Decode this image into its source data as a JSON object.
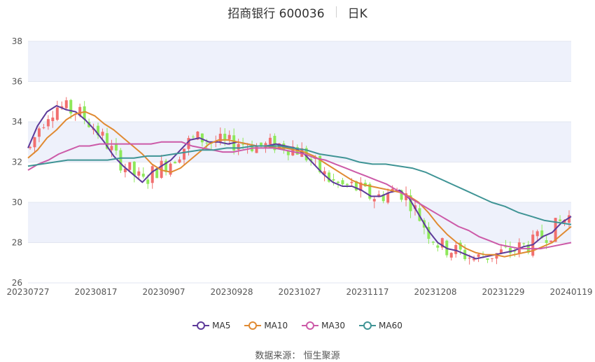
{
  "header": {
    "title": "招商银行 600036",
    "period": "日K"
  },
  "source": {
    "label": "数据来源：",
    "name": "恒生聚源"
  },
  "colors": {
    "up": "#f16f6f",
    "down": "#8ee85a",
    "band": "#eef1fb",
    "grid": "#e2e6f0",
    "MA5": "#5d3a9a",
    "MA10": "#e08a32",
    "MA30": "#cc5aa8",
    "MA60": "#3f9495"
  },
  "chart_data": {
    "type": "candlestick",
    "x_ticks": [
      "20230727",
      "20230817",
      "20230907",
      "20230928",
      "20231027",
      "20231117",
      "20231208",
      "20231229",
      "20240119"
    ],
    "ylim": [
      26,
      38
    ],
    "y_ticks": [
      26,
      28,
      30,
      32,
      34,
      36,
      38
    ],
    "grid": "horizontal bands",
    "legend_position": "bottom",
    "series": [
      {
        "name": "MA5",
        "values": [
          32.7,
          33.8,
          34.5,
          34.8,
          34.6,
          34.5,
          34.1,
          33.6,
          33.0,
          32.3,
          31.8,
          31.4,
          31.0,
          31.5,
          31.8,
          32.1,
          32.6,
          33.1,
          33.2,
          33.0,
          33.0,
          32.9,
          33.0,
          32.9,
          32.8,
          32.8,
          32.9,
          32.8,
          32.7,
          32.4,
          31.9,
          31.4,
          31.0,
          30.8,
          30.8,
          30.6,
          30.3,
          30.3,
          30.5,
          30.6,
          30.2,
          29.4,
          28.6,
          28.0,
          27.7,
          27.6,
          27.4,
          27.2,
          27.3,
          27.4,
          27.5,
          27.6,
          27.8,
          27.9,
          28.3,
          28.5,
          29.0,
          29.3
        ]
      },
      {
        "name": "MA10",
        "values": [
          32.2,
          32.6,
          33.2,
          33.6,
          34.1,
          34.4,
          34.5,
          34.3,
          33.9,
          33.6,
          33.2,
          32.8,
          32.4,
          31.9,
          31.6,
          31.5,
          31.7,
          32.1,
          32.5,
          32.9,
          33.1,
          33.1,
          33.0,
          32.9,
          32.8,
          32.8,
          32.7,
          32.7,
          32.6,
          32.5,
          32.3,
          32.0,
          31.7,
          31.4,
          31.1,
          30.9,
          30.8,
          30.7,
          30.6,
          30.5,
          30.3,
          30.0,
          29.5,
          28.9,
          28.4,
          28.0,
          27.7,
          27.5,
          27.4,
          27.4,
          27.3,
          27.4,
          27.5,
          27.6,
          27.8,
          28.0,
          28.4,
          28.8
        ]
      },
      {
        "name": "MA30",
        "values": [
          31.6,
          31.9,
          32.1,
          32.4,
          32.6,
          32.8,
          32.8,
          32.9,
          32.9,
          32.9,
          32.9,
          32.9,
          32.9,
          33.0,
          33.0,
          33.0,
          32.8,
          32.7,
          32.6,
          32.5,
          32.5,
          32.6,
          32.7,
          32.7,
          32.7,
          32.6,
          32.5,
          32.4,
          32.2,
          32.1,
          31.9,
          31.7,
          31.5,
          31.3,
          31.1,
          30.9,
          30.6,
          30.3,
          30.0,
          29.7,
          29.4,
          29.1,
          28.8,
          28.6,
          28.3,
          28.1,
          27.9,
          27.8,
          27.7,
          27.7,
          27.7,
          27.8,
          27.9,
          28.0
        ],
        "x_start_index": 0
      },
      {
        "name": "MA60",
        "values": [
          31.8,
          31.9,
          32.0,
          32.1,
          32.1,
          32.1,
          32.1,
          32.2,
          32.2,
          32.3,
          32.3,
          32.4,
          32.5,
          32.6,
          32.6,
          32.7,
          32.7,
          32.8,
          32.8,
          32.8,
          32.7,
          32.6,
          32.4,
          32.3,
          32.2,
          32.0,
          31.9,
          31.9,
          31.8,
          31.7,
          31.5,
          31.2,
          30.9,
          30.6,
          30.3,
          30.0,
          29.8,
          29.5,
          29.3,
          29.1,
          29.0,
          28.9
        ]
      }
    ],
    "candles_summary": "daily OHLC candles from 20230727 to 20240119; red = up day, green = down day"
  },
  "legend": [
    {
      "name": "MA5"
    },
    {
      "name": "MA10"
    },
    {
      "name": "MA30"
    },
    {
      "name": "MA60"
    }
  ]
}
